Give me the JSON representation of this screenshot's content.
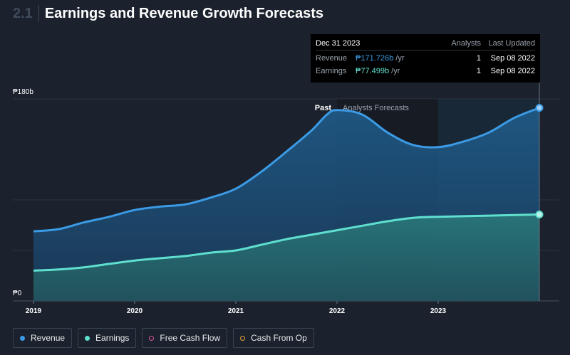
{
  "header": {
    "section_number": "2.1",
    "title": "Earnings and Revenue Growth Forecasts"
  },
  "chart_data": {
    "type": "area",
    "x_ticks": [
      "2019",
      "2020",
      "2021",
      "2022",
      "2023"
    ],
    "y_ticks": [
      "₱180b",
      "₱0"
    ],
    "ylim": [
      0,
      180
    ],
    "xlim": [
      2019.0,
      2024.0
    ],
    "past_label": "Past",
    "forecast_label": "Analysts Forecasts",
    "forecast_start": 2022.0,
    "series": [
      {
        "name": "Revenue",
        "color": "#3b9be6",
        "x": [
          2019.0,
          2019.25,
          2019.5,
          2019.75,
          2020.0,
          2020.25,
          2020.5,
          2020.75,
          2021.0,
          2021.25,
          2021.5,
          2021.75,
          2021.9,
          2022.0,
          2022.25,
          2022.5,
          2022.75,
          2023.0,
          2023.25,
          2023.5,
          2023.75,
          2024.0
        ],
        "values": [
          62,
          64,
          70,
          75,
          81,
          84,
          86,
          92,
          100,
          115,
          133,
          152,
          166,
          170,
          166,
          150,
          139,
          137,
          142,
          150,
          163,
          172
        ]
      },
      {
        "name": "Earnings",
        "color": "#5fe0cf",
        "x": [
          2019.0,
          2019.25,
          2019.5,
          2019.75,
          2020.0,
          2020.25,
          2020.5,
          2020.75,
          2021.0,
          2021.25,
          2021.5,
          2021.75,
          2022.0,
          2022.25,
          2022.5,
          2022.75,
          2023.0,
          2023.5,
          2024.0
        ],
        "values": [
          27,
          28,
          30,
          33,
          36,
          38,
          40,
          43,
          45,
          50,
          55,
          59,
          63,
          67,
          71,
          74,
          75,
          76,
          77
        ]
      }
    ]
  },
  "tooltip": {
    "date": "Dec 31 2023",
    "col_analysts": "Analysts",
    "col_updated": "Last Updated",
    "rows": [
      {
        "label": "Revenue",
        "value": "₱171.726b",
        "unit": "/yr",
        "analysts": "1",
        "updated": "Sep 08 2022"
      },
      {
        "label": "Earnings",
        "value": "₱77.499b",
        "unit": "/yr",
        "analysts": "1",
        "updated": "Sep 08 2022"
      }
    ]
  },
  "legend": [
    {
      "label": "Revenue",
      "color": "#3b9be6",
      "filled": true
    },
    {
      "label": "Earnings",
      "color": "#5fe0cf",
      "filled": true
    },
    {
      "label": "Free Cash Flow",
      "color": "#e0529a",
      "filled": false
    },
    {
      "label": "Cash From Op",
      "color": "#e8a23a",
      "filled": false
    }
  ]
}
